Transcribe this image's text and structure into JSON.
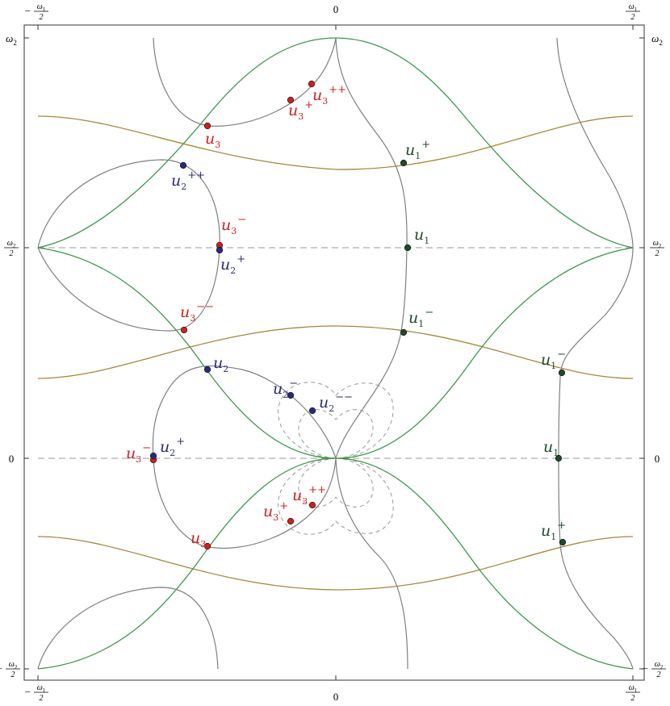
{
  "axes": {
    "x_ticks": [
      {
        "id": "xmin",
        "num": "ω",
        "sub": "1",
        "den": "2",
        "neg": true
      },
      {
        "id": "x0",
        "text": "0"
      },
      {
        "id": "xmax",
        "num": "ω",
        "sub": "1",
        "den": "2",
        "neg": false
      }
    ],
    "y_ticks": [
      {
        "id": "ytop",
        "text": "ω",
        "sub": "2"
      },
      {
        "id": "ymid",
        "num": "ω",
        "sub": "2",
        "den": "2",
        "neg": false
      },
      {
        "id": "y0",
        "text": "0"
      },
      {
        "id": "ymin",
        "num": "ω",
        "sub": "2",
        "den": "2",
        "neg": true
      }
    ]
  },
  "colors": {
    "gray_curve": "#7f7f7f",
    "green_curve": "#3a9a48",
    "gold_curve": "#a8873a",
    "dashed": "#999999",
    "red_point": "#d01f1f",
    "blue_point": "#2a2a7a",
    "green_point": "#1e4a2a"
  },
  "points": [
    {
      "id": "u3-top",
      "base": "u",
      "sub": "3",
      "sup": "",
      "color": "red"
    },
    {
      "id": "u3pp-top",
      "base": "u",
      "sub": "3",
      "sup": "++",
      "color": "red"
    },
    {
      "id": "u3p-top",
      "base": "u",
      "sub": "3",
      "sup": "+",
      "color": "red"
    },
    {
      "id": "u1p-top",
      "base": "u",
      "sub": "1",
      "sup": "+",
      "color": "green"
    },
    {
      "id": "u2pp",
      "base": "u",
      "sub": "2",
      "sup": "++",
      "color": "blue"
    },
    {
      "id": "u3m-mid",
      "base": "u",
      "sub": "3",
      "sup": "−",
      "color": "red"
    },
    {
      "id": "u2p-mid",
      "base": "u",
      "sub": "2",
      "sup": "+",
      "color": "blue"
    },
    {
      "id": "u1-mid",
      "base": "u",
      "sub": "1",
      "sup": "",
      "color": "green"
    },
    {
      "id": "u3mm",
      "base": "u",
      "sub": "3",
      "sup": "−−",
      "color": "red"
    },
    {
      "id": "u1m-mid",
      "base": "u",
      "sub": "1",
      "sup": "−",
      "color": "green"
    },
    {
      "id": "u1m-right",
      "base": "u",
      "sub": "1",
      "sup": "−",
      "color": "green"
    },
    {
      "id": "u2-low",
      "base": "u",
      "sub": "2",
      "sup": "",
      "color": "blue"
    },
    {
      "id": "u2m-low",
      "base": "u",
      "sub": "2",
      "sup": "−",
      "color": "blue"
    },
    {
      "id": "u2mm-low",
      "base": "u",
      "sub": "2",
      "sup": "−−",
      "color": "blue"
    },
    {
      "id": "u3m-low",
      "base": "u",
      "sub": "3",
      "sup": "−",
      "color": "red"
    },
    {
      "id": "u2p-low",
      "base": "u",
      "sub": "2",
      "sup": "+",
      "color": "blue"
    },
    {
      "id": "u1-right",
      "base": "u",
      "sub": "1",
      "sup": "",
      "color": "green"
    },
    {
      "id": "u3pp-low",
      "base": "u",
      "sub": "3",
      "sup": "++",
      "color": "red"
    },
    {
      "id": "u3p-low",
      "base": "u",
      "sub": "3",
      "sup": "+",
      "color": "red"
    },
    {
      "id": "u1p-right",
      "base": "u",
      "sub": "1",
      "sup": "+",
      "color": "green"
    },
    {
      "id": "u3-low",
      "base": "u",
      "sub": "3",
      "sup": "",
      "color": "red"
    }
  ]
}
